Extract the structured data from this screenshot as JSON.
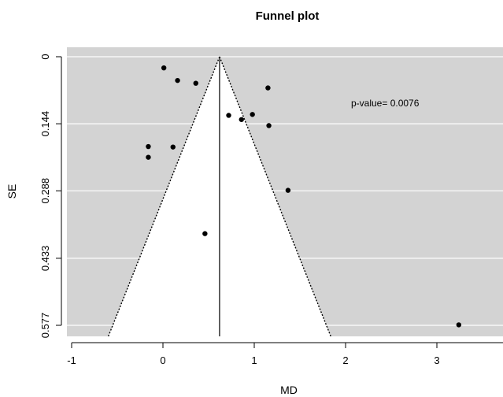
{
  "chart_data": {
    "type": "scatter",
    "title": "Funnel plot",
    "xlabel": "MD",
    "ylabel": "SE",
    "xlim": [
      -1.0,
      3.65
    ],
    "ylim": [
      0.0,
      0.577
    ],
    "y_reversed": true,
    "x_ticks": [
      "-1",
      "0",
      "1",
      "2",
      "3"
    ],
    "x_tick_values": [
      -1,
      0,
      1,
      2,
      3
    ],
    "y_ticks": [
      "0",
      "0.144",
      "0.288",
      "0.433",
      "0.577"
    ],
    "y_tick_values": [
      0,
      0.144,
      0.288,
      0.433,
      0.577
    ],
    "summary_md": 0.62,
    "funnel_limits_at_max_se": [
      -0.55,
      1.79
    ],
    "annotation": "p-value= 0.0076",
    "grid": true,
    "background_color": "#d3d3d3",
    "funnel_fill_color": "#ffffff",
    "point_color": "#000000",
    "points": [
      {
        "x": 0.01,
        "y": 0.024
      },
      {
        "x": 0.16,
        "y": 0.051
      },
      {
        "x": 0.36,
        "y": 0.057
      },
      {
        "x": 1.15,
        "y": 0.067
      },
      {
        "x": 0.72,
        "y": 0.126
      },
      {
        "x": 0.86,
        "y": 0.135
      },
      {
        "x": 0.98,
        "y": 0.124
      },
      {
        "x": 1.16,
        "y": 0.148
      },
      {
        "x": -0.16,
        "y": 0.193
      },
      {
        "x": -0.16,
        "y": 0.216
      },
      {
        "x": 0.11,
        "y": 0.194
      },
      {
        "x": 1.37,
        "y": 0.287
      },
      {
        "x": 0.46,
        "y": 0.38
      },
      {
        "x": 3.24,
        "y": 0.576
      }
    ]
  }
}
